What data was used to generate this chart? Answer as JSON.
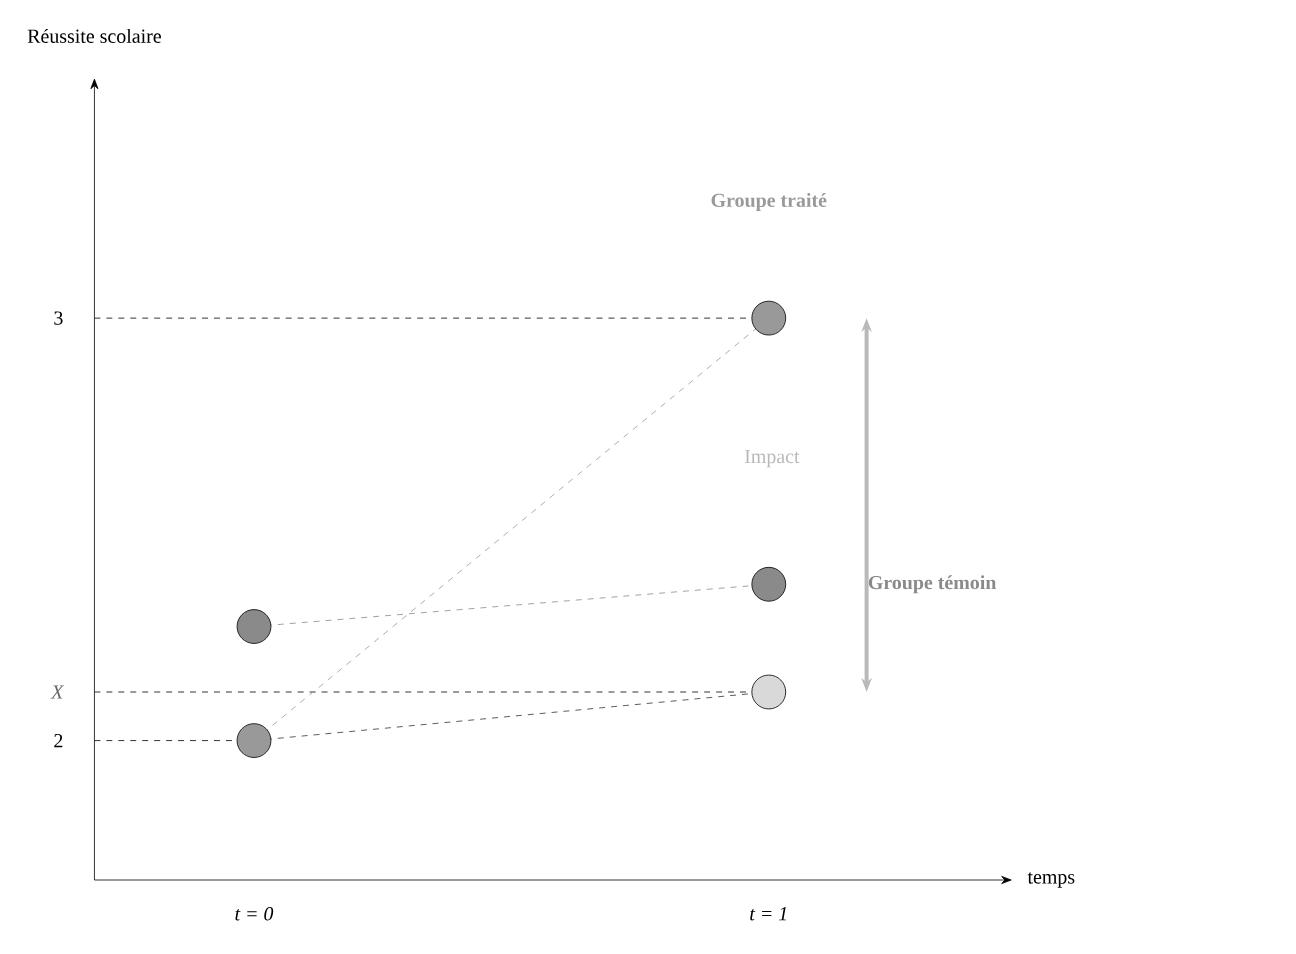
{
  "chart_data": {
    "type": "line",
    "ylabel": "Réussite scolaire",
    "categories": [
      "t = 0",
      "t = 1"
    ],
    "ylim": [
      1.67,
      3.54
    ],
    "yticks": [
      2,
      {
        "value": 2.115,
        "label": "X"
      },
      3
    ],
    "series": [
      {
        "name": "Groupe traité",
        "color": "#999999",
        "values": [
          2,
          3
        ]
      },
      {
        "name": "Groupe témoin",
        "color": "#8a8a8a",
        "values": [
          2.27,
          2.37
        ]
      },
      {
        "color": "#333333",
        "values": [
          2,
          2.115
        ],
        "marker": "none"
      },
      {
        "color": "#d9d9d9",
        "values": [
          null,
          2.115
        ]
      }
    ],
    "ref_lines": [
      {
        "axis": "y",
        "value": 3
      },
      {
        "axis": "y",
        "value": 2.115
      },
      {
        "axis": "y",
        "value": 2
      }
    ],
    "annotations": [
      "Impact",
      "temps"
    ],
    "marker": "circle",
    "line_style": "dashed"
  }
}
